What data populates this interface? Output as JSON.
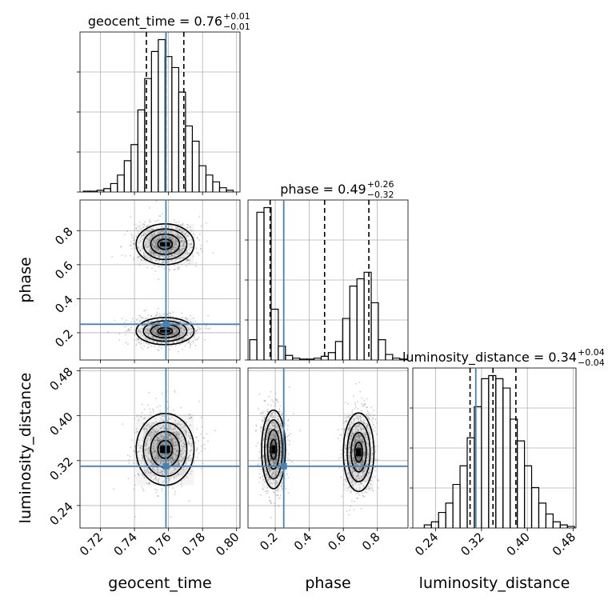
{
  "chart_data": {
    "type": "corner",
    "parameters": [
      "geocent_time",
      "phase",
      "luminosity_distance"
    ],
    "truths": {
      "geocent_time": 0.7585,
      "phase": 0.25,
      "luminosity_distance": 0.31
    },
    "ranges": {
      "geocent_time": [
        0.708,
        0.802
      ],
      "phase": [
        0.04,
        0.98
      ],
      "luminosity_distance": [
        0.2,
        0.485
      ]
    },
    "ticks": {
      "geocent_time": {
        "values": [
          0.72,
          0.74,
          0.76,
          0.78,
          0.8
        ],
        "labels": [
          "0.72",
          "0.74",
          "0.76",
          "0.78",
          "0.80"
        ]
      },
      "phase": {
        "values": [
          0.2,
          0.4,
          0.6,
          0.8
        ],
        "labels": [
          "0.2",
          "0.4",
          "0.6",
          "0.8"
        ]
      },
      "luminosity_distance": {
        "values": [
          0.24,
          0.32,
          0.4,
          0.48
        ],
        "labels": [
          "0.24",
          "0.32",
          "0.40",
          "0.48"
        ]
      }
    },
    "axis_labels": {
      "geocent_time": "geocent_time",
      "phase": "phase",
      "luminosity_distance": "luminosity_distance"
    },
    "titles": {
      "geocent_time": {
        "text": "geocent_time = 0.76",
        "plus": "+0.01",
        "minus": "−0.01"
      },
      "phase": {
        "text": "phase = 0.49",
        "plus": "+0.26",
        "minus": "−0.32"
      },
      "luminosity_distance": {
        "text": "luminosity_distance = 0.34",
        "plus": "+0.04",
        "minus": "−0.04"
      }
    },
    "quantiles": {
      "geocent_time": [
        0.747,
        0.7585,
        0.769
      ],
      "phase": [
        0.17,
        0.49,
        0.75
      ],
      "luminosity_distance": [
        0.3,
        0.34,
        0.38
      ]
    },
    "histograms": {
      "geocent_time": {
        "edges": [
          0.71,
          0.714,
          0.718,
          0.722,
          0.726,
          0.73,
          0.734,
          0.738,
          0.742,
          0.746,
          0.75,
          0.754,
          0.758,
          0.762,
          0.766,
          0.77,
          0.774,
          0.778,
          0.782,
          0.786,
          0.79,
          0.794,
          0.798
        ],
        "counts": [
          1,
          1,
          2,
          4,
          10,
          20,
          37,
          56,
          97,
          134,
          166,
          180,
          160,
          147,
          118,
          78,
          60,
          31,
          20,
          12,
          5,
          2
        ]
      },
      "phase": {
        "edges": [
          0.05,
          0.092,
          0.134,
          0.176,
          0.218,
          0.26,
          0.302,
          0.344,
          0.386,
          0.428,
          0.47,
          0.512,
          0.554,
          0.596,
          0.638,
          0.68,
          0.722,
          0.764,
          0.806,
          0.848,
          0.89,
          0.932,
          0.974
        ],
        "counts": [
          22,
          160,
          165,
          55,
          15,
          5,
          2,
          1,
          1,
          2,
          4,
          8,
          20,
          45,
          80,
          88,
          95,
          62,
          22,
          6,
          2,
          1
        ]
      },
      "luminosity_distance": {
        "edges": [
          0.22,
          0.2325,
          0.245,
          0.2575,
          0.27,
          0.2825,
          0.295,
          0.3075,
          0.32,
          0.3325,
          0.345,
          0.3575,
          0.37,
          0.3825,
          0.395,
          0.4075,
          0.42,
          0.4325,
          0.445,
          0.4575,
          0.47,
          0.4825
        ],
        "counts": [
          2,
          4,
          10,
          16,
          28,
          40,
          58,
          78,
          96,
          98,
          96,
          90,
          70,
          56,
          40,
          26,
          16,
          9,
          4,
          2,
          1
        ]
      }
    },
    "contour_centers": {
      "phase_vs_geocent_time": [
        {
          "x": 0.758,
          "y": 0.72
        },
        {
          "x": 0.758,
          "y": 0.21
        }
      ],
      "luminosity_distance_vs_geocent_time": [
        {
          "x": 0.758,
          "y": 0.34
        }
      ],
      "luminosity_distance_vs_phase": [
        {
          "x": 0.19,
          "y": 0.34
        },
        {
          "x": 0.69,
          "y": 0.335
        }
      ]
    },
    "grid": true,
    "colors": {
      "truth": "#4682b4",
      "hist": "#000000",
      "quantile": "#000000",
      "grid": "#b0b0b0",
      "density": "#000000"
    }
  }
}
